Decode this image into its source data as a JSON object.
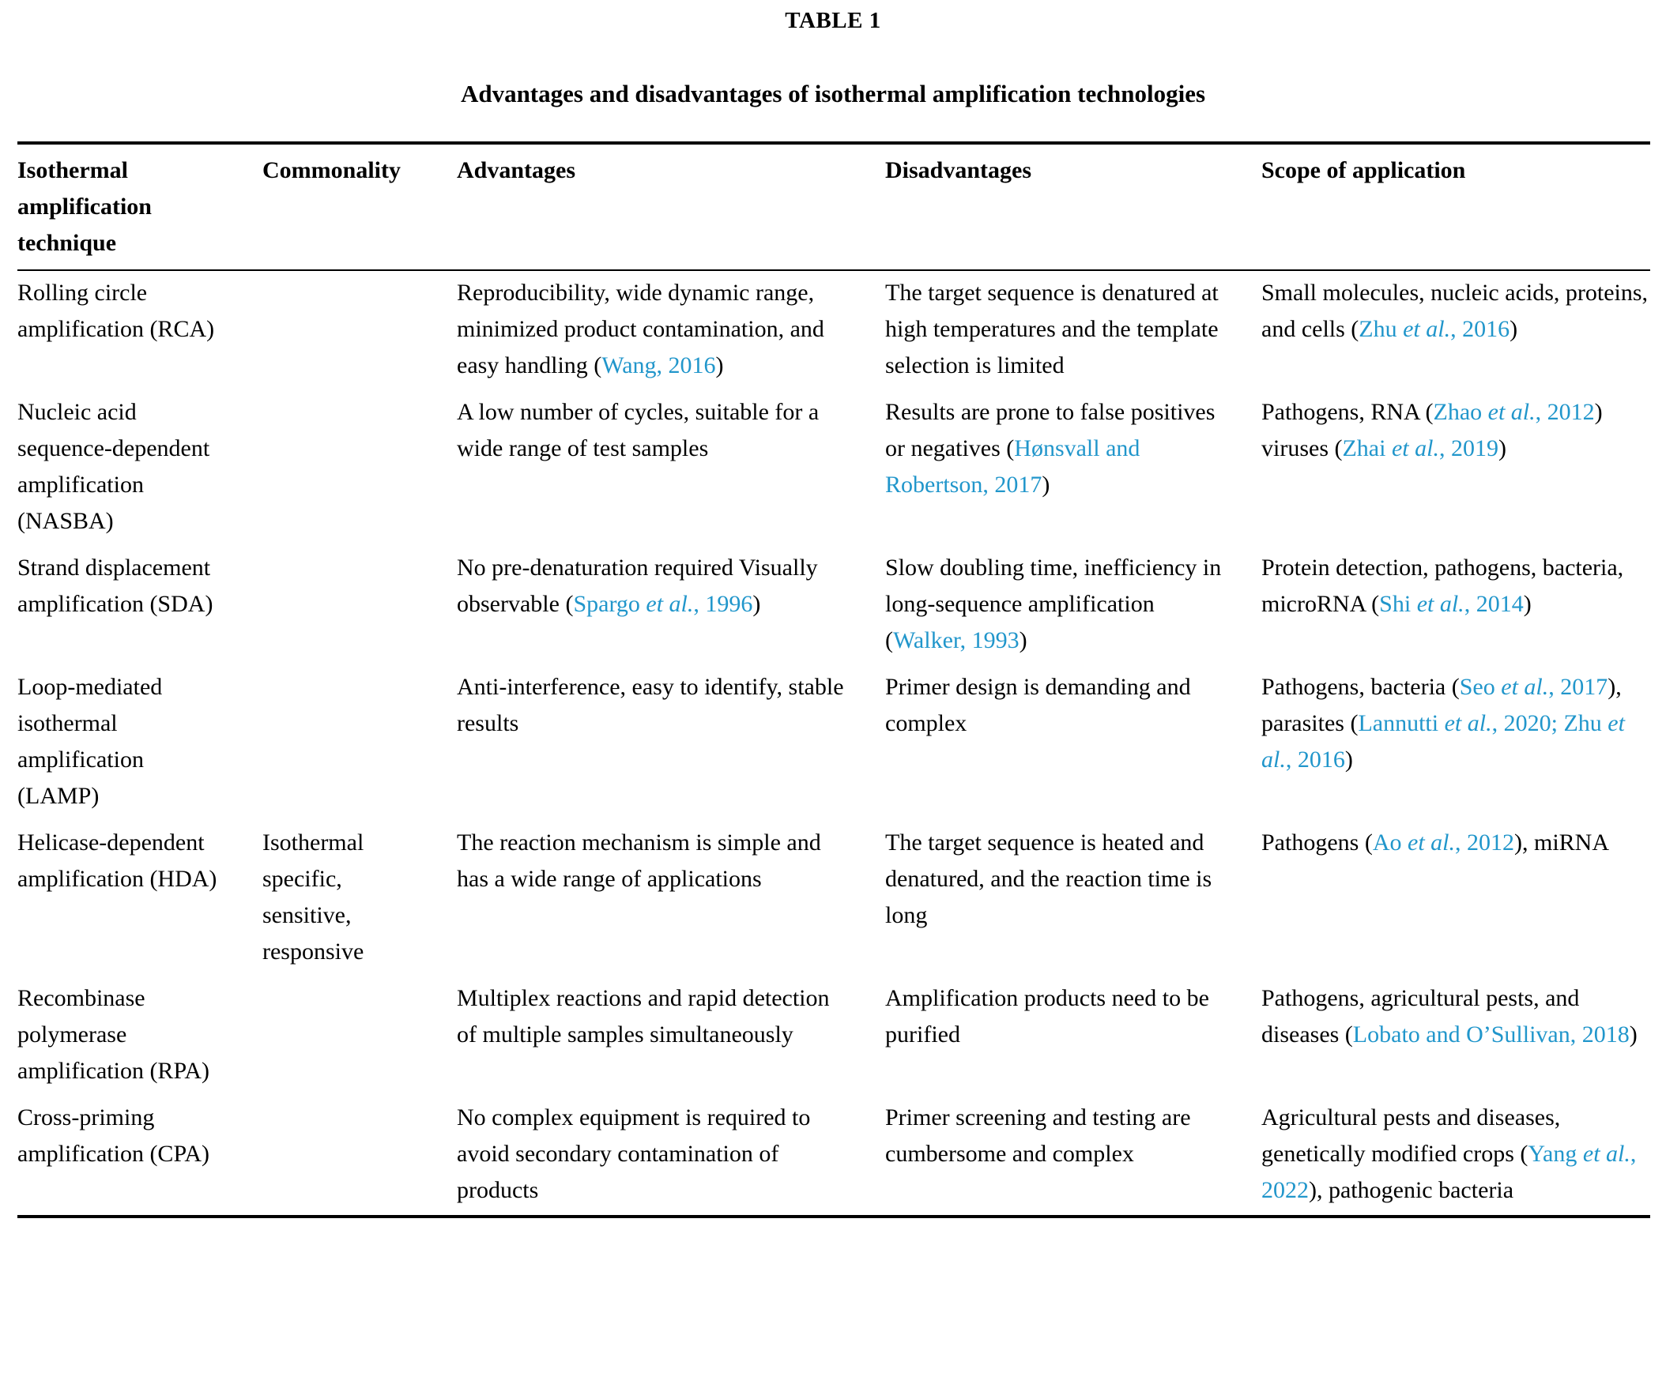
{
  "title": "TABLE 1",
  "subtitle": "Advantages and disadvantages of isothermal amplification technologies",
  "colors": {
    "text": "#000000",
    "citation_link": "#2196cb"
  },
  "columns": [
    {
      "id": "technique",
      "label": "Isothermal amplification technique"
    },
    {
      "id": "commonality",
      "label": "Commonality"
    },
    {
      "id": "advantages",
      "label": "Advantages"
    },
    {
      "id": "disadvantages",
      "label": "Disadvantages"
    },
    {
      "id": "scope",
      "label": "Scope of application"
    }
  ],
  "rows": [
    {
      "technique": [
        {
          "t": "Rolling circle amplification (RCA)"
        }
      ],
      "commonality": [],
      "advantages": [
        {
          "t": "Reproducibility, wide dynamic range, minimized product contamination, and easy handling ("
        },
        {
          "t": "Wang, 2016",
          "link": true
        },
        {
          "t": ")"
        }
      ],
      "disadvantages": [
        {
          "t": "The target sequence is denatured at high temperatures and the template selection is limited"
        }
      ],
      "scope": [
        {
          "t": "Small molecules, nucleic acids, proteins, and cells ("
        },
        {
          "t": "Zhu ",
          "link": true
        },
        {
          "t": "et al.",
          "link": true,
          "italic": true
        },
        {
          "t": ", 2016",
          "link": true
        },
        {
          "t": ")"
        }
      ]
    },
    {
      "technique": [
        {
          "t": "Nucleic acid sequence-dependent amplification (NASBA)"
        }
      ],
      "commonality": [],
      "advantages": [
        {
          "t": "A low number of cycles, suitable for a wide range of test samples"
        }
      ],
      "disadvantages": [
        {
          "t": "Results are prone to false positives or negatives ("
        },
        {
          "t": "Hønsvall and Robertson, 2017",
          "link": true
        },
        {
          "t": ")"
        }
      ],
      "scope": [
        {
          "t": "Pathogens, RNA ("
        },
        {
          "t": "Zhao ",
          "link": true
        },
        {
          "t": "et al.",
          "link": true,
          "italic": true
        },
        {
          "t": ", 2012",
          "link": true
        },
        {
          "t": ") viruses ("
        },
        {
          "t": "Zhai ",
          "link": true
        },
        {
          "t": "et al.",
          "link": true,
          "italic": true
        },
        {
          "t": ", 2019",
          "link": true
        },
        {
          "t": ")"
        }
      ]
    },
    {
      "technique": [
        {
          "t": "Strand displacement amplification (SDA)"
        }
      ],
      "commonality": [],
      "advantages": [
        {
          "t": "No pre-denaturation required Visually observable ("
        },
        {
          "t": "Spargo ",
          "link": true
        },
        {
          "t": "et al.",
          "link": true,
          "italic": true
        },
        {
          "t": ", 1996",
          "link": true
        },
        {
          "t": ")"
        }
      ],
      "disadvantages": [
        {
          "t": "Slow doubling time, inefficiency in long-sequence amplification ("
        },
        {
          "t": "Walker, 1993",
          "link": true
        },
        {
          "t": ")"
        }
      ],
      "scope": [
        {
          "t": "Protein detection, pathogens, bacteria, microRNA ("
        },
        {
          "t": "Shi ",
          "link": true
        },
        {
          "t": "et al.",
          "link": true,
          "italic": true
        },
        {
          "t": ", 2014",
          "link": true
        },
        {
          "t": ")"
        }
      ]
    },
    {
      "technique": [
        {
          "t": "Loop-mediated isothermal amplification (LAMP)"
        }
      ],
      "commonality": [],
      "advantages": [
        {
          "t": "Anti-interference, easy to identify, stable results"
        }
      ],
      "disadvantages": [
        {
          "t": "Primer design is demanding and complex"
        }
      ],
      "scope": [
        {
          "t": "Pathogens, bacteria ("
        },
        {
          "t": "Seo ",
          "link": true
        },
        {
          "t": "et al.",
          "link": true,
          "italic": true
        },
        {
          "t": ", 2017",
          "link": true
        },
        {
          "t": "), parasites ("
        },
        {
          "t": "Lannutti ",
          "link": true
        },
        {
          "t": "et al.",
          "link": true,
          "italic": true
        },
        {
          "t": ", 2020; Zhu ",
          "link": true
        },
        {
          "t": "et al.",
          "link": true,
          "italic": true
        },
        {
          "t": ", 2016",
          "link": true
        },
        {
          "t": ")"
        }
      ]
    },
    {
      "technique": [
        {
          "t": "Helicase-dependent amplification (HDA)"
        }
      ],
      "commonality": [
        {
          "t": "Isothermal specific, sensitive, responsive"
        }
      ],
      "advantages": [
        {
          "t": "The reaction mechanism is simple and has a wide range of applications"
        }
      ],
      "disadvantages": [
        {
          "t": "The target sequence is heated and denatured, and the reaction time is long"
        }
      ],
      "scope": [
        {
          "t": "Pathogens ("
        },
        {
          "t": "Ao ",
          "link": true
        },
        {
          "t": "et al.",
          "link": true,
          "italic": true
        },
        {
          "t": ", 2012",
          "link": true
        },
        {
          "t": "), miRNA"
        }
      ]
    },
    {
      "technique": [
        {
          "t": "Recombinase polymerase amplification (RPA)"
        }
      ],
      "commonality": [],
      "advantages": [
        {
          "t": "Multiplex reactions and rapid detection of multiple samples simultaneously"
        }
      ],
      "disadvantages": [
        {
          "t": "Amplification products need to be purified"
        }
      ],
      "scope": [
        {
          "t": "Pathogens, agricultural pests, and diseases ("
        },
        {
          "t": "Lobato and O’Sullivan, 2018",
          "link": true
        },
        {
          "t": ")"
        }
      ]
    },
    {
      "technique": [
        {
          "t": "Cross-priming amplification (CPA)"
        }
      ],
      "commonality": [],
      "advantages": [
        {
          "t": "No complex equipment is required to avoid secondary contamination of products"
        }
      ],
      "disadvantages": [
        {
          "t": "Primer screening and testing are cumbersome and complex"
        }
      ],
      "scope": [
        {
          "t": "Agricultural pests and diseases, genetically modified crops ("
        },
        {
          "t": "Yang ",
          "link": true
        },
        {
          "t": "et al.",
          "link": true,
          "italic": true
        },
        {
          "t": ", 2022",
          "link": true
        },
        {
          "t": "), pathogenic bacteria"
        }
      ]
    }
  ]
}
